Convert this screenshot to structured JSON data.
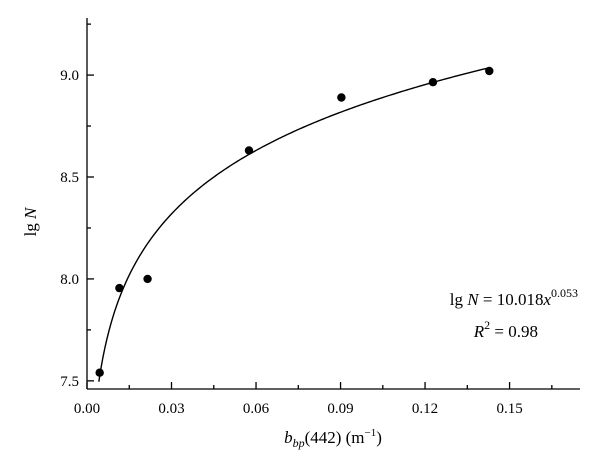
{
  "chart_data": {
    "type": "scatter",
    "title": "",
    "xlabel": {
      "base": "b",
      "sub": "bp",
      "tail": "(442) (m",
      "sup": "−1",
      "end": ")"
    },
    "ylabel": {
      "prefix": "lg ",
      "var": "N"
    },
    "xlim": [
      0,
      0.175
    ],
    "ylim": [
      7.46,
      9.28
    ],
    "xticks": [
      0.0,
      0.03,
      0.06,
      0.09,
      0.12,
      0.15
    ],
    "xtick_labels": [
      "0.00",
      "0.03",
      "0.06",
      "0.09",
      "0.12",
      "0.15"
    ],
    "yticks": [
      7.5,
      8.0,
      8.5,
      9.0
    ],
    "ytick_labels": [
      "7.5",
      "8.0",
      "8.5",
      "9.0"
    ],
    "grid": false,
    "series": [
      {
        "points": [
          {
            "x": 0.0045,
            "y": 7.54
          },
          {
            "x": 0.0115,
            "y": 7.955
          },
          {
            "x": 0.0215,
            "y": 8.0
          },
          {
            "x": 0.0575,
            "y": 8.63
          },
          {
            "x": 0.0903,
            "y": 8.89
          },
          {
            "x": 0.1228,
            "y": 8.965
          },
          {
            "x": 0.1428,
            "y": 9.02
          }
        ]
      }
    ],
    "fit": {
      "coefficient": 10.018,
      "exponent": 0.053,
      "x_range": [
        0.0042,
        0.143
      ]
    },
    "annotations": {
      "equation": {
        "prefix": "lg ",
        "var": "N",
        "middle": " = 10.018",
        "x": "x",
        "sup": "0.053"
      },
      "r2": {
        "var": "R",
        "sup": "2",
        "rest": " = 0.98"
      }
    }
  }
}
